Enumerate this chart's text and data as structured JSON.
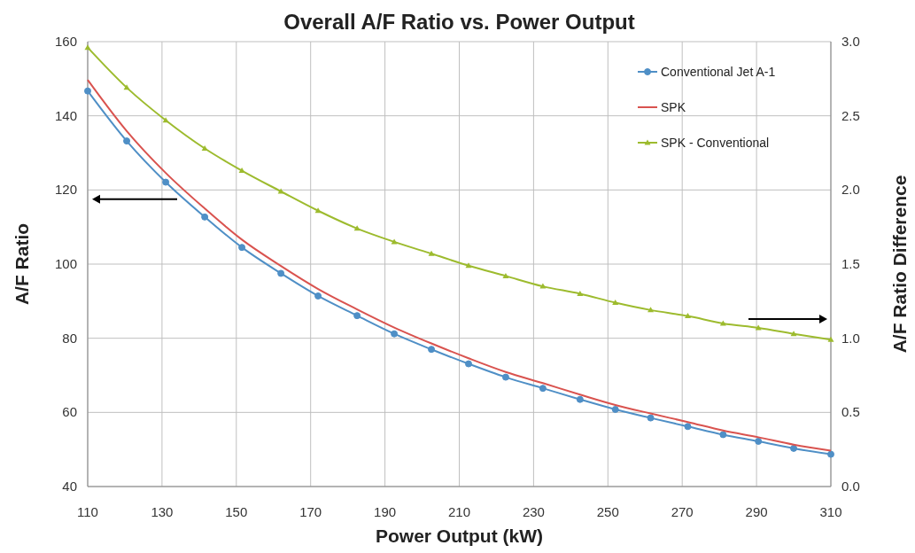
{
  "chart_data": {
    "type": "line",
    "title": "Overall A/F Ratio vs. Power Output",
    "xlabel": "Power Output (kW)",
    "ylabel": "A/F Ratio",
    "y2label": "A/F Ratio Difference",
    "x": [
      110,
      120.5,
      131,
      141.5,
      151.5,
      162,
      172,
      182.5,
      192.5,
      202.5,
      212.5,
      222.5,
      232.5,
      242.5,
      252,
      261.5,
      271.5,
      281,
      290.5,
      300,
      310
    ],
    "series": [
      {
        "name": "Conventional Jet A-1",
        "color": "#4f8fc6",
        "marker": "circle",
        "values": [
          146.7,
          133.2,
          122.1,
          112.7,
          104.5,
          97.5,
          91.4,
          86.1,
          81.2,
          77.0,
          73.1,
          69.5,
          66.5,
          63.5,
          60.8,
          58.5,
          56.2,
          54.0,
          52.2,
          50.3,
          48.7
        ]
      },
      {
        "name": "SPK",
        "color": "#d9534f",
        "marker": "none",
        "values": [
          149.7,
          135.9,
          124.6,
          115.0,
          106.6,
          99.5,
          93.3,
          87.8,
          82.9,
          78.6,
          74.6,
          70.9,
          67.9,
          64.8,
          62.0,
          59.7,
          57.4,
          55.1,
          53.3,
          51.3,
          49.7
        ]
      },
      {
        "name": "SPK - Conventional",
        "color": "#9dbb2e",
        "marker": "triangle",
        "axis": "y2",
        "values": [
          2.96,
          2.69,
          2.47,
          2.28,
          2.13,
          1.99,
          1.86,
          1.74,
          1.65,
          1.57,
          1.49,
          1.42,
          1.35,
          1.3,
          1.24,
          1.19,
          1.15,
          1.1,
          1.07,
          1.03,
          0.99
        ]
      }
    ],
    "xlim": [
      110,
      310
    ],
    "xticks": [
      110,
      130,
      150,
      170,
      190,
      210,
      230,
      250,
      270,
      290,
      310
    ],
    "ylim": [
      40,
      160
    ],
    "yticks": [
      40,
      60,
      80,
      100,
      120,
      140,
      160
    ],
    "y2lim": [
      0,
      3
    ],
    "y2ticks": [
      {
        "value": 0,
        "label": "0.0"
      },
      {
        "value": 0.5,
        "label": "0.5"
      },
      {
        "value": 1,
        "label": "1.0"
      },
      {
        "value": 1.5,
        "label": "1.5"
      },
      {
        "value": 2,
        "label": "2.0"
      },
      {
        "value": 2.5,
        "label": "2.5"
      },
      {
        "value": 3,
        "label": "3.0"
      }
    ],
    "grid": true,
    "legend": "top right"
  }
}
